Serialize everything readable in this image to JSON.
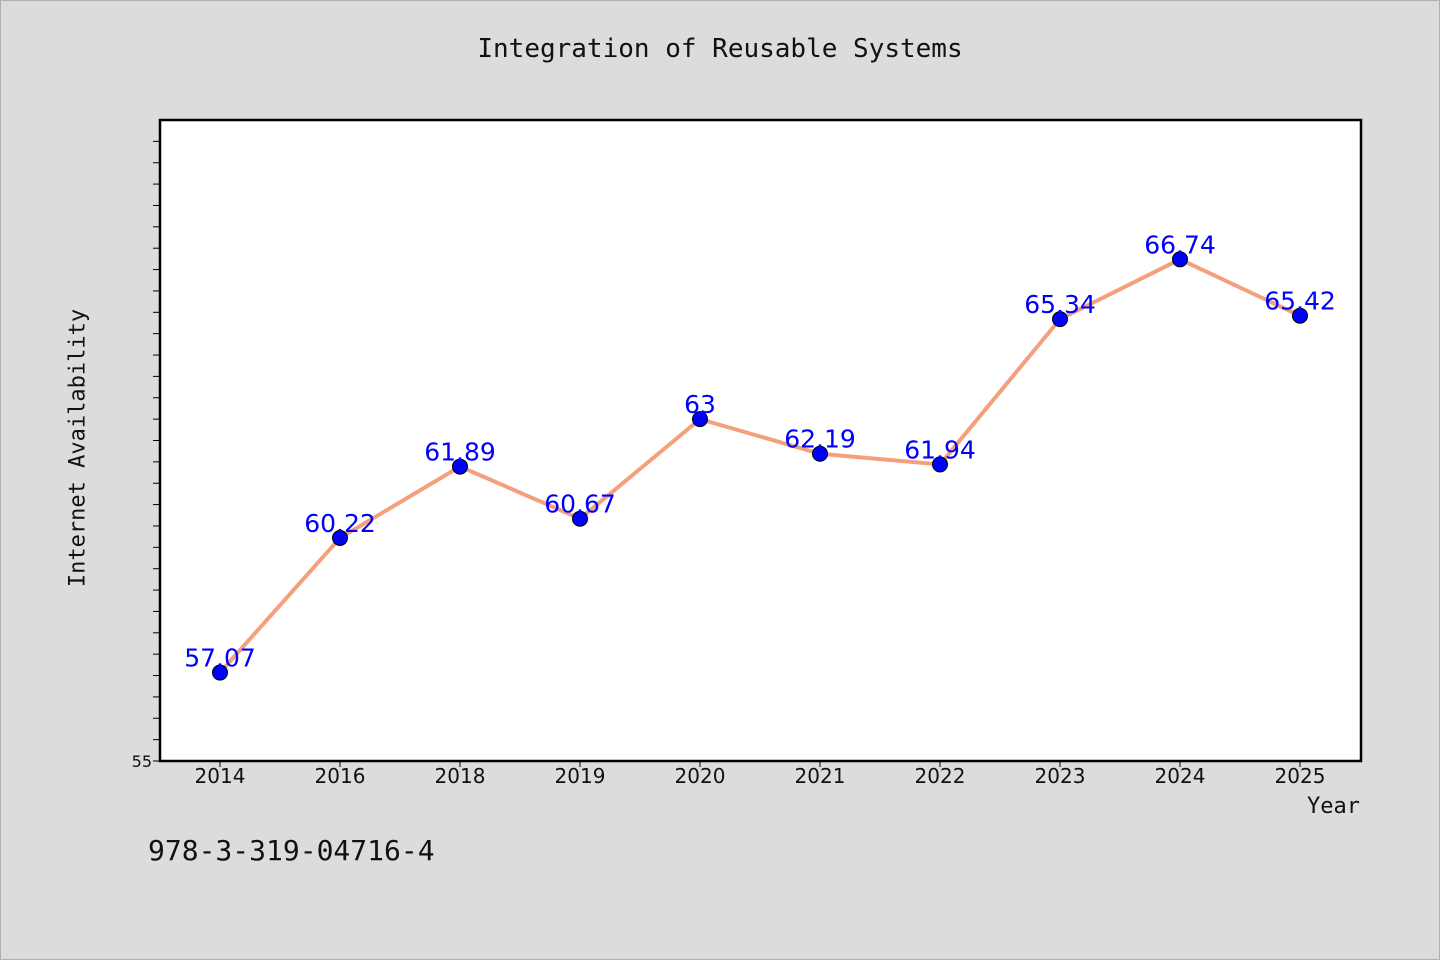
{
  "chart_data": {
    "type": "line",
    "title": "Integration of Reusable Systems",
    "xlabel": "Year",
    "ylabel": "Internet Availability",
    "categories": [
      "2014",
      "2016",
      "2018",
      "2019",
      "2020",
      "2021",
      "2022",
      "2023",
      "2024",
      "2025"
    ],
    "series": [
      {
        "values": [
          57.07,
          60.22,
          61.89,
          60.67,
          63,
          62.19,
          61.94,
          65.34,
          66.74,
          65.42
        ],
        "data_labels": [
          "57.07",
          "60.22",
          "61.89",
          "60.67",
          "63",
          "62.19",
          "61.94",
          "65.34",
          "66.74",
          "65.42"
        ],
        "line_color": "#f4a07c",
        "marker_color": "#0000ff"
      }
    ],
    "ylim": [
      55,
      70
    ],
    "y_tick_labels": [
      {
        "value": 55,
        "label": "55"
      }
    ],
    "grid": false,
    "legend": "none",
    "background": "#ffffff"
  },
  "footnote": "978-3-319-04716-4"
}
